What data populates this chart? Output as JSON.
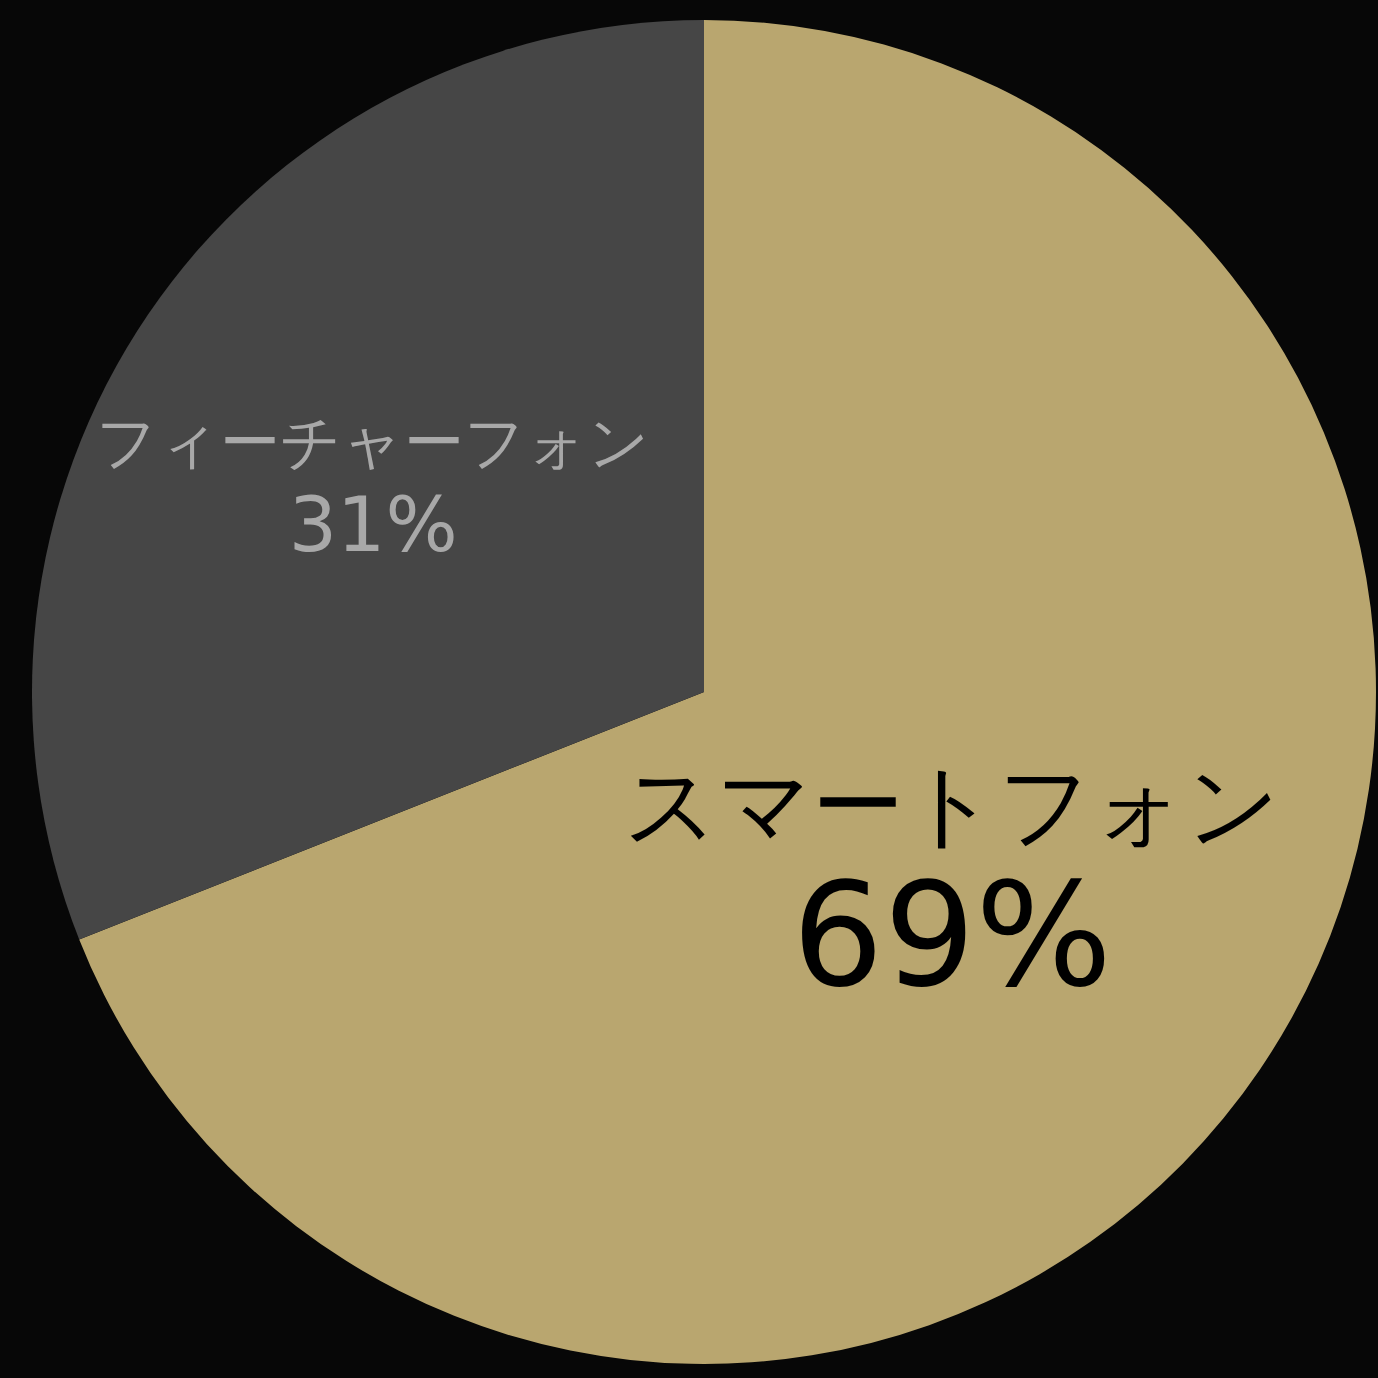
{
  "chart_data": {
    "type": "pie",
    "categories": [
      "スマートフォン",
      "フィーチャーフォン"
    ],
    "values": [
      69,
      31
    ],
    "colors": [
      "#b9a66f",
      "#464646"
    ],
    "value_labels": [
      "69%",
      "31%"
    ]
  }
}
